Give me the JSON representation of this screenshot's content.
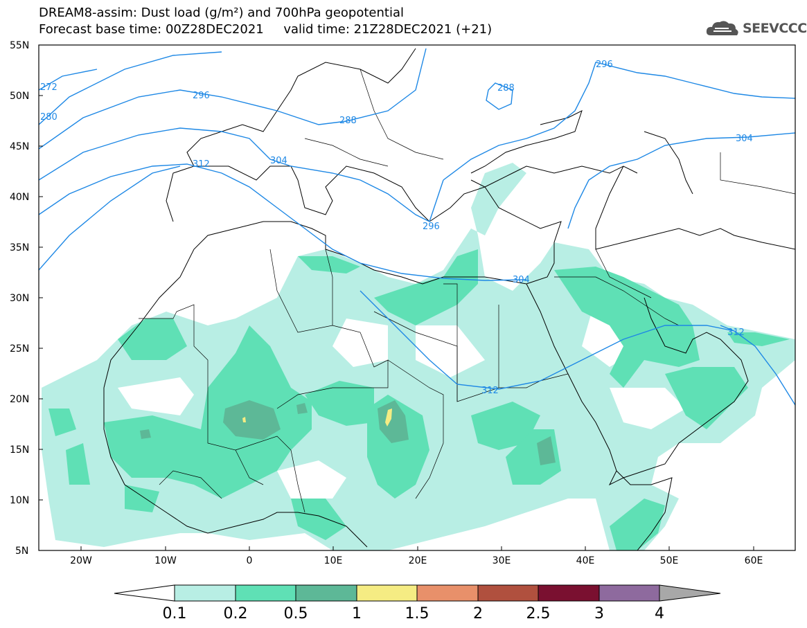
{
  "header": {
    "line1": "DREAM8-assim: Dust load (g/m²) and 700hPa geopotential",
    "line2": "Forecast base time: 00Z28DEC2021     valid time: 21Z28DEC2021 (+21)"
  },
  "logo": {
    "text": "SEEVCCC",
    "icon": "cloud-icon"
  },
  "axes": {
    "lat_labels": [
      "55N",
      "50N",
      "45N",
      "40N",
      "35N",
      "30N",
      "25N",
      "20N",
      "15N",
      "10N",
      "5N"
    ],
    "lon_labels": [
      "20W",
      "10W",
      "0",
      "10E",
      "20E",
      "30E",
      "40E",
      "50E",
      "60E"
    ]
  },
  "contours": {
    "color": "#1e88e5",
    "labels": [
      "272",
      "280",
      "296",
      "288",
      "296",
      "288",
      "304",
      "312",
      "296",
      "304",
      "304",
      "312",
      "312",
      "304"
    ]
  },
  "colorbar": {
    "levels": [
      "0.1",
      "0.2",
      "0.5",
      "1",
      "1.5",
      "2",
      "2.5",
      "3",
      "4"
    ],
    "colors": [
      "#b8eee4",
      "#5fe0b5",
      "#5db897",
      "#f5ec83",
      "#e8906a",
      "#b0503e",
      "#7a1030",
      "#8e6a9e"
    ],
    "under_color": "#ffffff",
    "over_color": "#a8a8a8"
  },
  "dust_colors": {
    "light": "#b8eee4",
    "medium": "#5fe0b5",
    "dark": "#5db897",
    "yellow": "#f5ec83"
  }
}
